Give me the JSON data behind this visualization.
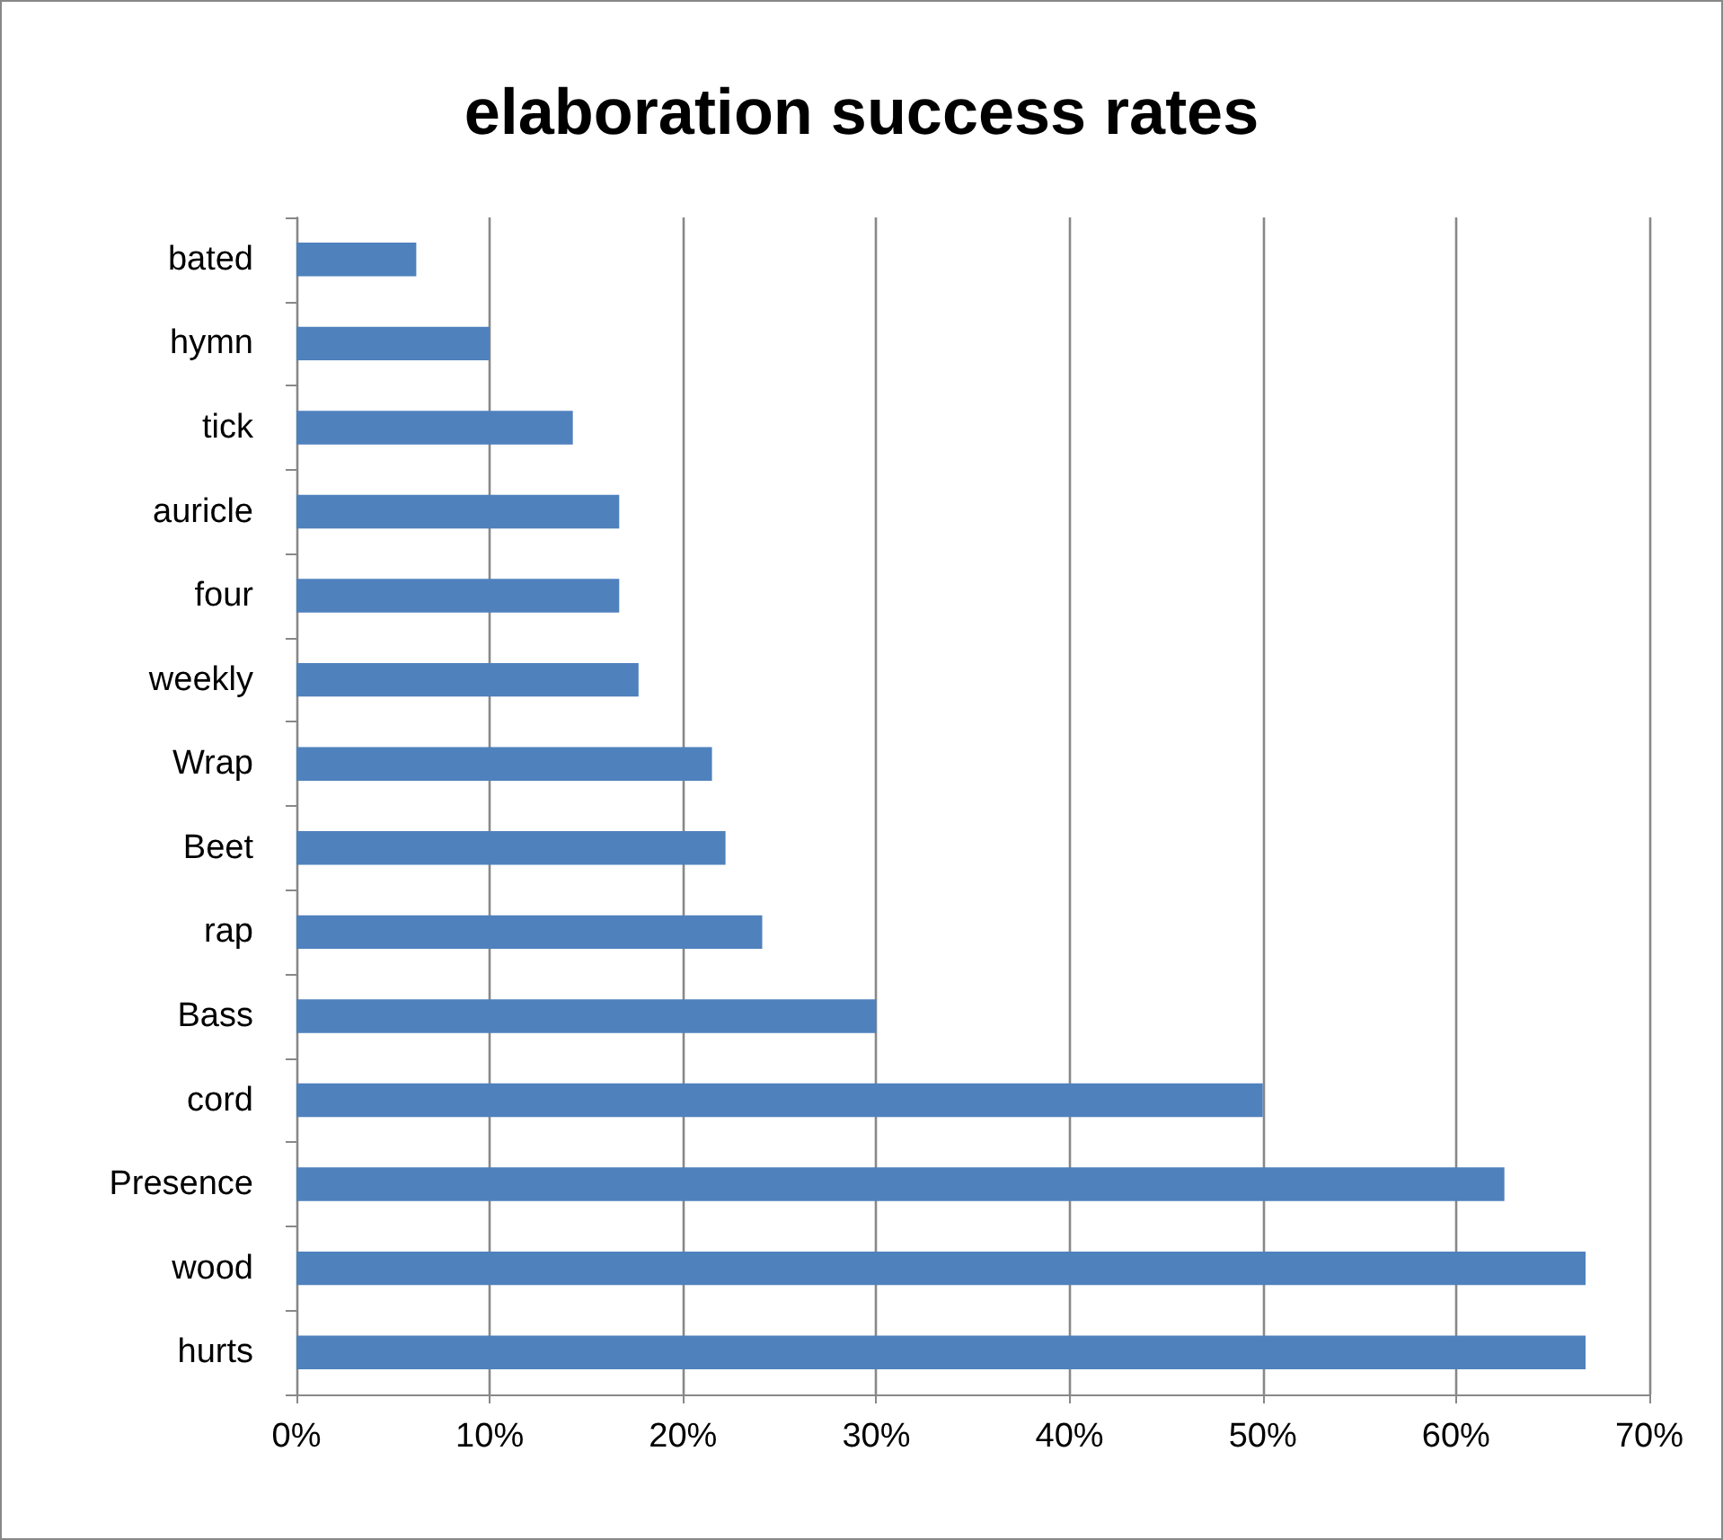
{
  "chart_data": {
    "type": "bar",
    "orientation": "horizontal",
    "title": "elaboration success rates",
    "categories": [
      "bated",
      "hymn",
      "tick",
      "auricle",
      "four",
      "weekly",
      "Wrap",
      "Beet",
      "rap",
      "Bass",
      "cord",
      "Presence",
      "wood",
      "hurts"
    ],
    "values": [
      6.2,
      10,
      14.3,
      16.7,
      16.7,
      17.7,
      21.5,
      22.2,
      24.1,
      30,
      50,
      62.5,
      66.7,
      66.7
    ],
    "color": "#4f81bd",
    "xlim": [
      0,
      70
    ],
    "xticks": [
      {
        "value": 0,
        "label": "0%"
      },
      {
        "value": 10,
        "label": "10%"
      },
      {
        "value": 20,
        "label": "20%"
      },
      {
        "value": 30,
        "label": "30%"
      },
      {
        "value": 40,
        "label": "40%"
      },
      {
        "value": 50,
        "label": "50%"
      },
      {
        "value": 60,
        "label": "60%"
      },
      {
        "value": 70,
        "label": "70%"
      }
    ],
    "grid": "x"
  }
}
